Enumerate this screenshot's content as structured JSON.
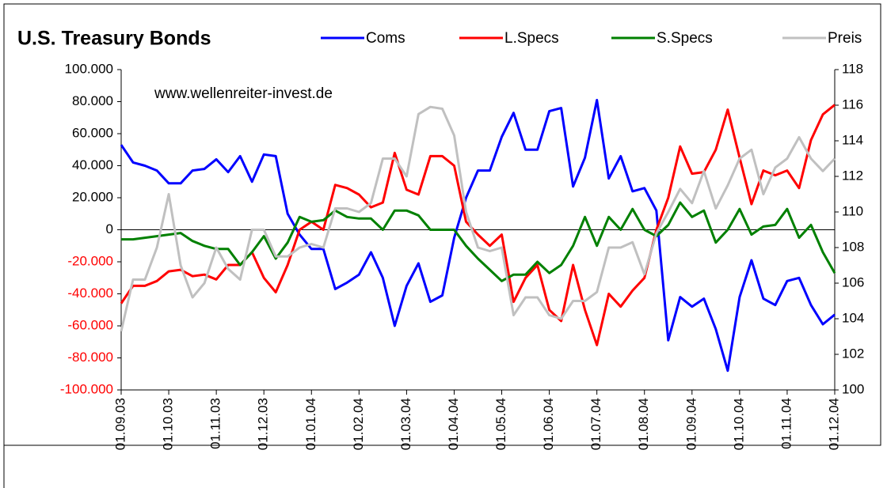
{
  "chart_data": {
    "type": "line",
    "title": "U.S. Treasury Bonds",
    "annotation": "www.wellenreiter-invest.de",
    "categories": [
      "01.09.03",
      null,
      null,
      null,
      "01.10.03",
      null,
      null,
      null,
      "01.11.03",
      null,
      null,
      null,
      "01.12.03",
      null,
      null,
      null,
      "01.01.04",
      null,
      null,
      null,
      "01.02.04",
      null,
      null,
      null,
      "01.03.04",
      null,
      null,
      null,
      "01.04.04",
      null,
      null,
      null,
      "01.05.04",
      null,
      null,
      null,
      "01.06.04",
      null,
      null,
      null,
      "01.07.04",
      null,
      null,
      null,
      "01.08.04",
      null,
      null,
      null,
      "01.09.04",
      null,
      null,
      null,
      "01.10.04",
      null,
      null,
      null,
      "01.11.04",
      null,
      null,
      null,
      "01.12.04"
    ],
    "series": [
      {
        "name": "Coms",
        "color": "#0000ff",
        "axis": "y",
        "values": [
          53000,
          42000,
          40000,
          37000,
          29000,
          29000,
          37000,
          38000,
          44000,
          36000,
          46000,
          30000,
          47000,
          46000,
          10000,
          -3000,
          -12000,
          -12000,
          -37000,
          -33000,
          -28000,
          -14000,
          -30000,
          -60000,
          -35000,
          -21000,
          -45000,
          -41000,
          -5000,
          20000,
          37000,
          37000,
          58000,
          73000,
          50000,
          50000,
          74000,
          76000,
          27000,
          45000,
          81000,
          32000,
          46000,
          24000,
          26000,
          12000,
          -69000,
          -42000,
          -48000,
          -43000,
          -62000,
          -88000,
          -42000,
          -19000,
          -43000,
          -47000,
          -32000,
          -30000,
          -47000,
          -59000,
          -53000
        ]
      },
      {
        "name": "L.Specs",
        "color": "#ff0000",
        "axis": "y",
        "values": [
          -46000,
          -35000,
          -35000,
          -32000,
          -26000,
          -25000,
          -29000,
          -28000,
          -31000,
          -22000,
          -22000,
          -14000,
          -30000,
          -39000,
          -22000,
          0,
          5000,
          0,
          28000,
          26000,
          22000,
          14000,
          17000,
          48000,
          25000,
          22000,
          46000,
          46000,
          40000,
          5000,
          -3000,
          -10000,
          -3000,
          -45000,
          -30000,
          -22000,
          -50000,
          -57000,
          -22000,
          -50000,
          -72000,
          -40000,
          -48000,
          -38000,
          -30000,
          0,
          20000,
          52000,
          35000,
          36000,
          50000,
          75000,
          45000,
          16000,
          37000,
          34000,
          37000,
          26000,
          56000,
          72000,
          78000
        ]
      },
      {
        "name": "S.Specs",
        "color": "#008000",
        "axis": "y",
        "values": [
          -6000,
          -6000,
          -5000,
          -4000,
          -3000,
          -2000,
          -7000,
          -10000,
          -12000,
          -12000,
          -22000,
          -14000,
          -4000,
          -18000,
          -8000,
          8000,
          5000,
          6000,
          12000,
          8000,
          7000,
          7000,
          0,
          12000,
          12000,
          9000,
          0,
          0,
          0,
          -10000,
          -18000,
          -25000,
          -32000,
          -28000,
          -28000,
          -20000,
          -27000,
          -22000,
          -10000,
          8000,
          -10000,
          8000,
          0,
          13000,
          0,
          -4000,
          3000,
          17000,
          8000,
          12000,
          -8000,
          0,
          13000,
          -3000,
          2000,
          3000,
          13000,
          -5000,
          3000,
          -14000,
          -27000
        ]
      },
      {
        "name": "Preis",
        "color": "#c0c0c0",
        "axis": "y2",
        "values": [
          103.3,
          106.2,
          106.2,
          108,
          111,
          107,
          105.2,
          106,
          108,
          106.8,
          106.2,
          109,
          109,
          107.5,
          107.5,
          108,
          108.2,
          108,
          110.2,
          110.2,
          110,
          110.5,
          113,
          113,
          112,
          115.5,
          115.9,
          115.8,
          114.3,
          110,
          108,
          107.8,
          108,
          104.2,
          105.2,
          105.2,
          104.2,
          104,
          105,
          105,
          105.5,
          108,
          108,
          108.3,
          106.5,
          108.8,
          110,
          111.3,
          110.5,
          112.3,
          110.2,
          111.5,
          113,
          113.5,
          111,
          112.5,
          113,
          114.2,
          113,
          112.3,
          113
        ]
      }
    ],
    "ylim": [
      -100000,
      100000
    ],
    "yticks": [
      {
        "value": -100000,
        "label": "-100.000"
      },
      {
        "value": -80000,
        "label": "-80.000"
      },
      {
        "value": -60000,
        "label": "-60.000"
      },
      {
        "value": -40000,
        "label": "-40.000"
      },
      {
        "value": -20000,
        "label": "-20.000"
      },
      0,
      {
        "value": 20000,
        "label": "20.000"
      },
      {
        "value": 40000,
        "label": "40.000"
      },
      {
        "value": 60000,
        "label": "60.000"
      },
      {
        "value": 80000,
        "label": "80.000"
      },
      {
        "value": 100000,
        "label": "100.000"
      }
    ],
    "y2lim": [
      100,
      118
    ],
    "y2ticks": [
      100,
      102,
      104,
      106,
      108,
      110,
      112,
      114,
      116,
      118
    ],
    "grid": false
  }
}
